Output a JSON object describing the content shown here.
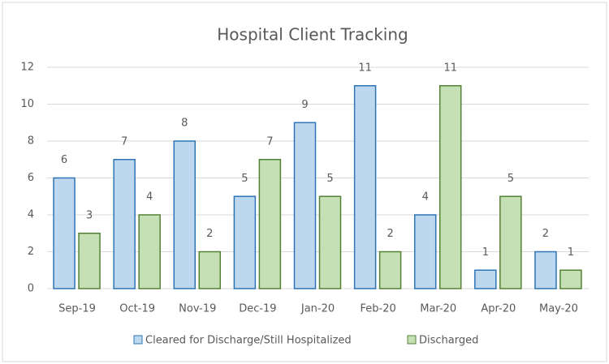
{
  "chart_data": {
    "type": "bar",
    "title": "Hospital Client Tracking",
    "categories": [
      "Sep-19",
      "Oct-19",
      "Nov-19",
      "Dec-19",
      "Jan-20",
      "Feb-20",
      "Mar-20",
      "Apr-20",
      "May-20"
    ],
    "series": [
      {
        "name": "Cleared for Discharge/Still Hospitalized",
        "color": "#bdd7ee",
        "values": [
          6,
          7,
          8,
          5,
          9,
          11,
          4,
          1,
          2
        ]
      },
      {
        "name": "Discharged",
        "color": "#c5e0b4",
        "values": [
          3,
          4,
          2,
          7,
          5,
          2,
          11,
          5,
          1
        ]
      }
    ],
    "ylim": [
      0,
      12
    ],
    "yticks": [
      0,
      2,
      4,
      6,
      8,
      10,
      12
    ],
    "grid": true,
    "legend": "bottom"
  }
}
